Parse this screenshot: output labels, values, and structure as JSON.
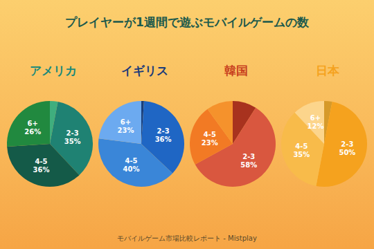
{
  "title": "プレイヤーが1週間で遊ぶモバイルゲームの数",
  "footer": "モバイルゲーム市場比較レポート - Mistplay",
  "chart_data": [
    {
      "type": "pie",
      "title": "アメリカ",
      "categories": [
        null,
        "2-3",
        "4-5",
        "6+"
      ],
      "values": [
        3,
        35,
        36,
        26
      ],
      "value_labels": [
        null,
        "35%",
        "36%",
        "26%"
      ],
      "colors": [
        "#3fae7e",
        "#1f8273",
        "#145a48",
        "#21893f"
      ],
      "data_labels": true
    },
    {
      "type": "pie",
      "title": "イギリス",
      "categories": [
        null,
        "2-3",
        "4-5",
        "6+"
      ],
      "values": [
        1,
        36,
        40,
        23
      ],
      "value_labels": [
        null,
        "36%",
        "40%",
        "23%"
      ],
      "colors": [
        "#173f7e",
        "#1f66c4",
        "#3a86d8",
        "#6caaf0"
      ],
      "data_labels": true
    },
    {
      "type": "pie",
      "title": "韓国",
      "categories": [
        null,
        "2-3",
        "4-5",
        null
      ],
      "values": [
        9,
        58,
        23,
        10
      ],
      "value_labels": [
        null,
        "58%",
        "23%",
        null
      ],
      "colors": [
        "#a8321e",
        "#d9573f",
        "#f27a24",
        "#f5922c"
      ],
      "data_labels": true
    },
    {
      "type": "pie",
      "title": "日本",
      "categories": [
        null,
        "2-3",
        "4-5",
        "6+"
      ],
      "values": [
        3,
        50,
        35,
        12
      ],
      "value_labels": [
        null,
        "50%",
        "35%",
        "12%"
      ],
      "colors": [
        "#d69a2a",
        "#f5a21e",
        "#f8bb4a",
        "#fcd58c"
      ],
      "data_labels": true
    }
  ]
}
